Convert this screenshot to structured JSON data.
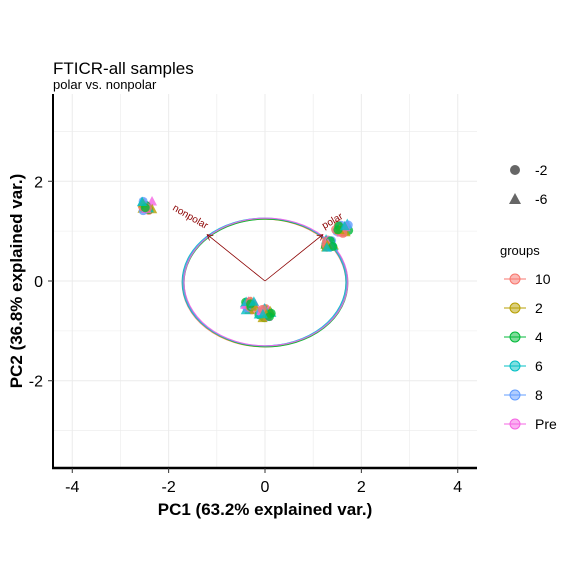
{
  "chart_data": {
    "type": "scatter",
    "title": "FTICR-all samples",
    "subtitle": "polar vs. nonpolar",
    "xlabel": "PC1 (63.2% explained var.)",
    "ylabel": "PC2 (36.8% explained var.)",
    "xlim": [
      -4.4,
      4.4
    ],
    "ylim": [
      -3.75,
      3.75
    ],
    "xticks": [
      -4,
      -2,
      0,
      2,
      4
    ],
    "yticks": [
      -2,
      0,
      2
    ],
    "grid": true,
    "legend_placement": "right",
    "shape_legend": [
      {
        "label": "-2",
        "shape": "circle"
      },
      {
        "label": "-6",
        "shape": "triangle"
      }
    ],
    "group_legend_title": "groups",
    "groups": [
      {
        "label": "10",
        "color": "#F8766D"
      },
      {
        "label": "2",
        "color": "#B79F00"
      },
      {
        "label": "4",
        "color": "#00BA38"
      },
      {
        "label": "6",
        "color": "#00BFC4"
      },
      {
        "label": "8",
        "color": "#619CFF"
      },
      {
        "label": "Pre",
        "color": "#F564E3"
      }
    ],
    "clusters": [
      {
        "center": [
          -2.45,
          1.5
        ],
        "spread": [
          0.12,
          0.1
        ]
      },
      {
        "center": [
          1.6,
          1.05
        ],
        "spread": [
          0.15,
          0.1
        ]
      },
      {
        "center": [
          1.35,
          0.75
        ],
        "spread": [
          0.1,
          0.08
        ]
      },
      {
        "center": [
          -0.3,
          -0.5
        ],
        "spread": [
          0.12,
          0.1
        ]
      },
      {
        "center": [
          0.0,
          -0.65
        ],
        "spread": [
          0.14,
          0.1
        ]
      }
    ],
    "arrows": [
      {
        "label": "nonpolar",
        "end": [
          -1.2,
          0.93
        ]
      },
      {
        "label": "polar",
        "end": [
          1.2,
          0.93
        ]
      }
    ],
    "ellipse": {
      "center": [
        0,
        -0.03
      ],
      "radii": [
        1.7,
        1.28
      ]
    }
  }
}
